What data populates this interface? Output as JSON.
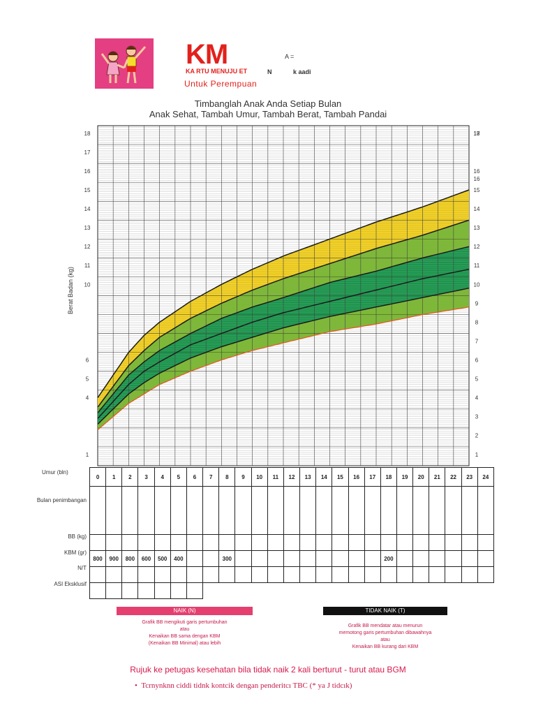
{
  "header": {
    "logo_text": "KM",
    "logo_subtext": "KA RTU MENUJU ET",
    "fragment_a": "A =",
    "fragment_n": "N",
    "fragment_k": "k aadi",
    "subtitle": "Untuk Perempuan"
  },
  "titles": {
    "line1": "Timbanglah Anak Anda Setiap Bulan",
    "line2": "Anak Sehat, Tambah Umur, Tambah Berat, Tambah Pandai"
  },
  "chart_data": {
    "type": "line",
    "ylabel": "Berat Badan (kg)",
    "x_ticks": [
      "0",
      "1",
      "2",
      "3",
      "4",
      "5",
      "6",
      "7",
      "8",
      "9",
      "10",
      "11",
      "12",
      "13",
      "14",
      "15",
      "16",
      "17",
      "18",
      "19",
      "20",
      "21",
      "22",
      "23",
      "24"
    ],
    "y_ticks_left": [
      "1",
      "4",
      "5",
      "6",
      "10",
      "11",
      "12",
      "13",
      "14",
      "15",
      "16",
      "17",
      "18"
    ],
    "y_ticks_right": [
      "1",
      "2",
      "3",
      "4",
      "5",
      "6",
      "7",
      "8",
      "9",
      "10",
      "11",
      "12",
      "13",
      "14",
      "15",
      "16",
      "16",
      "17",
      "18"
    ],
    "ylim": [
      0,
      18
    ],
    "xlim": [
      0,
      24
    ],
    "grid": true,
    "colors": {
      "yellow": "#f6d21a",
      "light_green": "#7bbb2e",
      "dark_green": "#16974a",
      "curve": "#1b1b1b",
      "bottom_curve": "#e8561c"
    },
    "series": [
      {
        "x": [
          0,
          1,
          2,
          3,
          4,
          6,
          8,
          10,
          12,
          15,
          18,
          21,
          24
        ],
        "values": [
          3.6,
          4.8,
          6.0,
          6.9,
          7.6,
          8.7,
          9.6,
          10.4,
          11.1,
          12.0,
          12.9,
          13.7,
          14.6
        ]
      },
      {
        "x": [
          0,
          1,
          2,
          3,
          4,
          6,
          8,
          10,
          12,
          15,
          18,
          21,
          24
        ],
        "values": [
          3.1,
          4.2,
          5.3,
          6.1,
          6.8,
          7.8,
          8.6,
          9.3,
          9.9,
          10.7,
          11.5,
          12.2,
          13.0
        ]
      },
      {
        "x": [
          0,
          1,
          2,
          3,
          4,
          6,
          8,
          10,
          12,
          15,
          18,
          21,
          24
        ],
        "values": [
          2.8,
          3.8,
          4.8,
          5.5,
          6.1,
          7.0,
          7.8,
          8.4,
          8.9,
          9.7,
          10.3,
          11.0,
          11.6
        ]
      },
      {
        "x": [
          0,
          1,
          2,
          3,
          4,
          6,
          8,
          10,
          12,
          15,
          18,
          21,
          24
        ],
        "values": [
          2.5,
          3.4,
          4.3,
          5.0,
          5.5,
          6.4,
          7.0,
          7.6,
          8.1,
          8.7,
          9.3,
          9.9,
          10.4
        ]
      },
      {
        "x": [
          0,
          1,
          2,
          3,
          4,
          6,
          8,
          10,
          12,
          15,
          18,
          21,
          24
        ],
        "values": [
          2.2,
          3.0,
          3.8,
          4.4,
          4.9,
          5.7,
          6.3,
          6.8,
          7.3,
          7.9,
          8.4,
          8.9,
          9.4
        ]
      },
      {
        "x": [
          0,
          1,
          2,
          3,
          4,
          6,
          8,
          10,
          12,
          15,
          18,
          21,
          24
        ],
        "values": [
          1.9,
          2.6,
          3.3,
          3.8,
          4.3,
          5.0,
          5.6,
          6.1,
          6.5,
          7.1,
          7.5,
          8.0,
          8.4
        ]
      }
    ]
  },
  "table": {
    "header_label": "Umur (bln)",
    "months": [
      "0",
      "1",
      "2",
      "3",
      "4",
      "5",
      "6",
      "7",
      "8",
      "9",
      "10",
      "11",
      "12",
      "13",
      "14",
      "15",
      "16",
      "17",
      "18",
      "19",
      "20",
      "21",
      "22",
      "23",
      "24"
    ],
    "row_labels": [
      "Bulan penimbangan",
      "BB (kg)",
      "KBM (gr)",
      "N/T",
      "ASI Eksklusif"
    ],
    "kbm_values": [
      "800",
      "900",
      "800",
      "600",
      "500",
      "400",
      "",
      "",
      "300",
      "",
      "",
      "",
      "",
      "",
      "",
      "",
      "",
      "",
      "200",
      "",
      "",
      "",
      "",
      "",
      ""
    ]
  },
  "legend": {
    "naik_label": "NAIK (N)",
    "naik_color": "#e43f6f",
    "naik_lines": [
      "Grafik BB mengikuti garis pertumbuhan",
      "atau",
      "Kenaikan BB sama dengan KBM",
      "(Kenaikan BB Minimal) atau lebih"
    ],
    "tidak_label": "TIDAK NAIK (T)",
    "tidak_color": "#111111",
    "tidak_lines": [
      "Grafik BB mendatar atau menurun",
      "memotong garis pertumbuhan dibawahnya",
      "atau",
      "Kenaikan BB kurang dari KBM"
    ]
  },
  "footer": {
    "rujuk": "Rujuk ke petugas kesehatan bila tidak naik 2 kali berturut - turut atau BGM",
    "note": "Tcrnynknn ciddi tidnk kontcik dengan penderitcı TBC (* ya J tidcık)"
  }
}
